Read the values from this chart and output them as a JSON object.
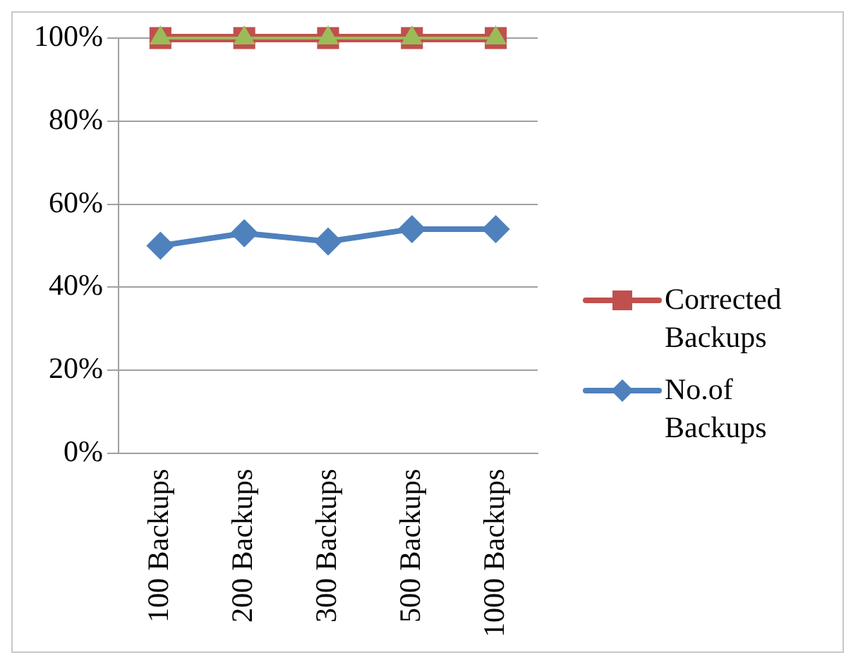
{
  "chart_data": {
    "type": "line",
    "categories": [
      "100 Backups",
      "200 Backups",
      "300 Backups",
      "500 Backups",
      "1000 Backups"
    ],
    "series": [
      {
        "name": "Corrected Backups",
        "color": "#c0504d",
        "marker": "square",
        "values": [
          100,
          100,
          100,
          100,
          100
        ]
      },
      {
        "color": "#9bbb59",
        "marker": "triangle",
        "values": [
          100,
          100,
          100,
          100,
          100
        ]
      },
      {
        "name": "No.of Backups",
        "color": "#4f81bd",
        "marker": "diamond",
        "values": [
          50,
          53,
          51,
          54,
          54
        ]
      }
    ],
    "ylim": [
      0,
      100
    ],
    "yticks": [
      {
        "value": 0,
        "label": "0%"
      },
      {
        "value": 20,
        "label": "20%"
      },
      {
        "value": 40,
        "label": "40%"
      },
      {
        "value": 60,
        "label": "60%"
      },
      {
        "value": 80,
        "label": "80%"
      },
      {
        "value": 100,
        "label": "100%"
      }
    ],
    "grid": "y",
    "legend": "right"
  }
}
